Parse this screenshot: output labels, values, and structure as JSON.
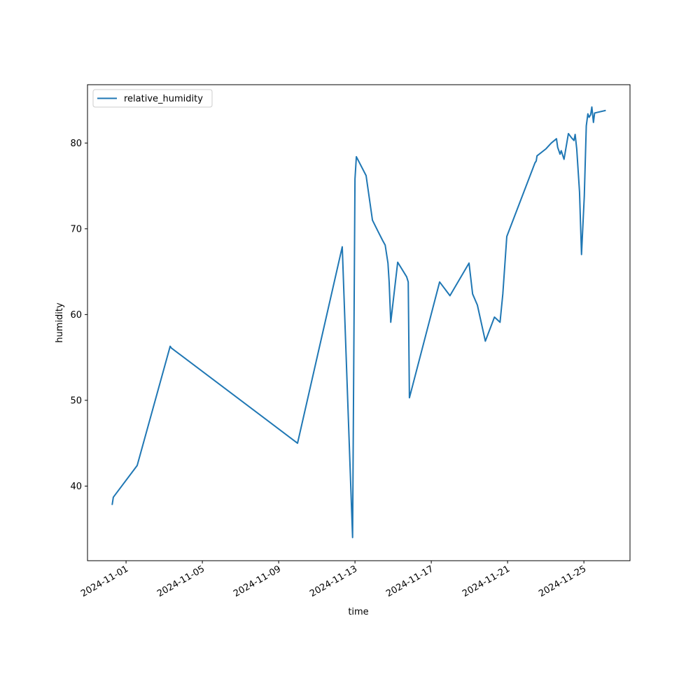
{
  "chart_data": {
    "type": "line",
    "x_label": "time",
    "y_label": "humidity",
    "legend": "upper left",
    "color": "#1f77b4",
    "x": [
      "2024-10-31T06:30",
      "2024-10-31T08:00",
      "2024-11-01T14:00",
      "2024-11-03T07:30",
      "2024-11-03T09:00",
      "2024-11-09T23:45",
      "2024-11-12T08:00",
      "2024-11-12T21:00",
      "2024-11-13T00:00",
      "2024-11-13T01:45",
      "2024-11-13T14:00",
      "2024-11-13T22:00",
      "2024-11-14T05:00",
      "2024-11-14T11:00",
      "2024-11-14T14:00",
      "2024-11-14T17:30",
      "2024-11-14T19:00",
      "2024-11-14T21:00",
      "2024-11-15T05:45",
      "2024-11-15T17:00",
      "2024-11-15T19:00",
      "2024-11-15T20:30",
      "2024-11-17T10:30",
      "2024-11-17T23:30",
      "2024-11-18T23:30",
      "2024-11-19T04:00",
      "2024-11-19T10:00",
      "2024-11-19T20:00",
      "2024-11-20T07:30",
      "2024-11-20T14:30",
      "2024-11-20T18:00",
      "2024-11-20T23:00",
      "2024-11-22T10:30",
      "2024-11-22T12:00",
      "2024-11-22T13:00",
      "2024-11-23T00:00",
      "2024-11-23T07:00",
      "2024-11-23T13:30",
      "2024-11-23T15:00",
      "2024-11-23T18:00",
      "2024-11-23T19:30",
      "2024-11-23T23:00",
      "2024-11-24T04:30",
      "2024-11-24T08:30",
      "2024-11-24T11:30",
      "2024-11-24T13:00",
      "2024-11-24T15:00",
      "2024-11-24T18:30",
      "2024-11-24T21:00",
      "2024-11-25T00:30",
      "2024-11-25T03:00",
      "2024-11-25T05:00",
      "2024-11-25T06:30",
      "2024-11-25T08:30",
      "2024-11-25T10:00",
      "2024-11-25T12:00",
      "2024-11-25T13:30",
      "2024-11-26T03:30"
    ],
    "series": [
      {
        "name": "relative_humidity",
        "color": "#1f77b4",
        "values": [
          37.8,
          38.7,
          42.4,
          56.3,
          56.1,
          45.0,
          67.9,
          34.0,
          75.8,
          78.4,
          76.2,
          71.0,
          69.7,
          68.6,
          68.1,
          66.0,
          63.8,
          59.1,
          66.1,
          64.4,
          63.8,
          50.3,
          63.8,
          62.2,
          66.0,
          62.4,
          61.1,
          56.9,
          59.7,
          59.1,
          62.4,
          69.1,
          77.7,
          77.9,
          78.5,
          79.3,
          80.0,
          80.5,
          79.5,
          78.7,
          79.1,
          78.1,
          81.1,
          80.6,
          80.3,
          81.0,
          79.3,
          74.3,
          67.0,
          73.8,
          82.0,
          83.4,
          83.0,
          83.3,
          84.2,
          82.4,
          83.5,
          83.8
        ]
      }
    ],
    "xlim": [
      "2024-10-29T23:30",
      "2024-11-27T10:00"
    ],
    "xticks": [
      "2024-11-01",
      "2024-11-05",
      "2024-11-09",
      "2024-11-13",
      "2024-11-17",
      "2024-11-21",
      "2024-11-25"
    ],
    "ylim": [
      31.3,
      86.8
    ],
    "yticks": [
      40,
      50,
      60,
      70,
      80
    ]
  }
}
